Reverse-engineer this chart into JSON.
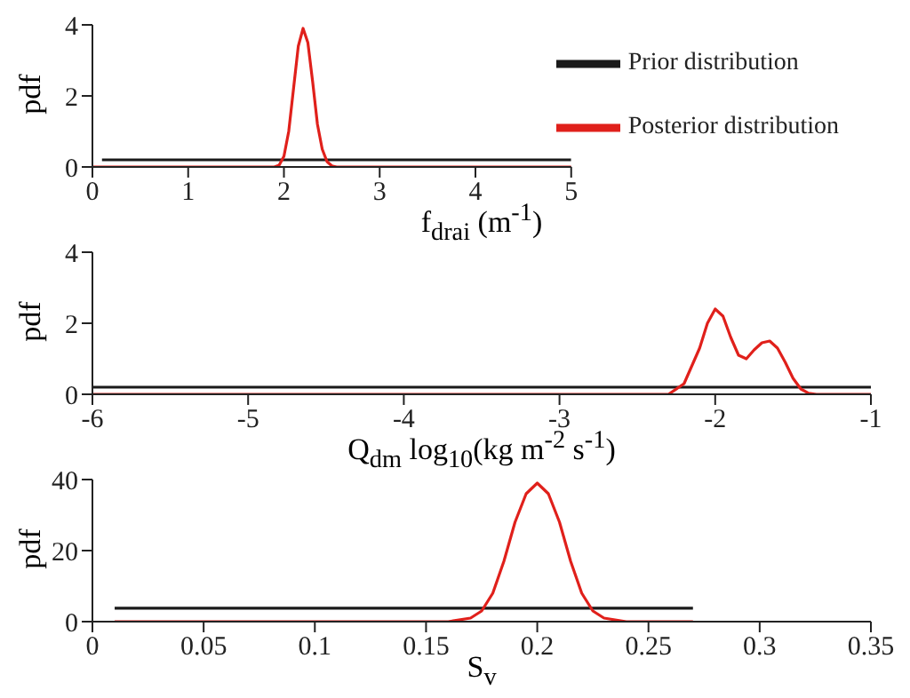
{
  "chart_data": [
    {
      "type": "line",
      "xlabel": "f$_{drai}$ (m$^{-1}$)",
      "ylabel": "pdf",
      "xlim": [
        0,
        5
      ],
      "xticks": [
        0,
        1,
        2,
        3,
        4,
        5
      ],
      "ylim": [
        0,
        4
      ],
      "yticks": [
        0,
        2,
        4
      ],
      "grid": false,
      "legend": "top right",
      "marker": "none",
      "line_style": "solid",
      "series": [
        {
          "name": "Prior distribution",
          "color": "#1a1a1a",
          "x": [
            0.1,
            5
          ],
          "values": [
            0.2,
            0.2
          ]
        },
        {
          "name": "Posterior distribution",
          "color": "#e0201b",
          "x": [
            0,
            1.9,
            1.95,
            2.0,
            2.05,
            2.1,
            2.15,
            2.2,
            2.25,
            2.3,
            2.35,
            2.4,
            2.45,
            2.5,
            2.55,
            5
          ],
          "values": [
            0,
            0,
            0.05,
            0.3,
            1.0,
            2.2,
            3.4,
            3.9,
            3.5,
            2.4,
            1.2,
            0.5,
            0.15,
            0.03,
            0,
            0
          ]
        }
      ]
    },
    {
      "type": "line",
      "xlabel": "Q$_{dm}$ log$_{10}$(kg m$^{-2}$ s$^{-1}$)",
      "ylabel": "pdf",
      "xlim": [
        -6,
        -1
      ],
      "xticks": [
        -6,
        -5,
        -4,
        -3,
        -2,
        -1
      ],
      "ylim": [
        0,
        4
      ],
      "yticks": [
        0,
        2,
        4
      ],
      "grid": false,
      "legend": false,
      "marker": "none",
      "line_style": "solid",
      "series": [
        {
          "color": "#1a1a1a",
          "x": [
            -6,
            -1
          ],
          "values": [
            0.2,
            0.2
          ]
        },
        {
          "color": "#e0201b",
          "x": [
            -6,
            -2.3,
            -2.2,
            -2.1,
            -2.05,
            -2.0,
            -1.95,
            -1.9,
            -1.85,
            -1.8,
            -1.75,
            -1.7,
            -1.65,
            -1.6,
            -1.55,
            -1.5,
            -1.45,
            -1.4,
            -1.35,
            -1
          ],
          "values": [
            0,
            0,
            0.3,
            1.3,
            2.0,
            2.4,
            2.2,
            1.6,
            1.1,
            1.0,
            1.25,
            1.45,
            1.5,
            1.3,
            0.9,
            0.45,
            0.15,
            0.03,
            0,
            0
          ]
        }
      ]
    },
    {
      "type": "line",
      "xlabel": "S$_{v}$",
      "ylabel": "pdf",
      "xlim": [
        0,
        0.35
      ],
      "xticks": [
        0,
        0.05,
        0.1,
        0.15,
        0.2,
        0.25,
        0.3,
        0.35
      ],
      "ylim": [
        0,
        40
      ],
      "yticks": [
        0,
        20,
        40
      ],
      "grid": false,
      "legend": false,
      "marker": "none",
      "line_style": "solid",
      "series": [
        {
          "color": "#1a1a1a",
          "x": [
            0.01,
            0.27
          ],
          "values": [
            3.8,
            3.8
          ]
        },
        {
          "color": "#e0201b",
          "x": [
            0.01,
            0.16,
            0.17,
            0.175,
            0.18,
            0.185,
            0.19,
            0.195,
            0.2,
            0.205,
            0.21,
            0.215,
            0.22,
            0.225,
            0.23,
            0.24,
            0.27
          ],
          "values": [
            0,
            0,
            1,
            3,
            8,
            17,
            28,
            36,
            39,
            36,
            28,
            17,
            8,
            3,
            1,
            0,
            0
          ]
        }
      ]
    }
  ]
}
